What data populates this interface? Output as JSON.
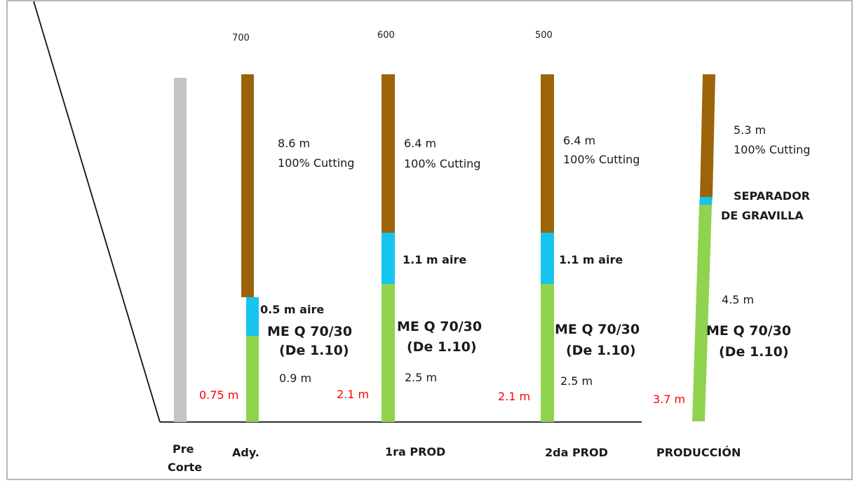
{
  "colors": {
    "frame": "#a0a0a0",
    "cutting": "#9c6409",
    "air": "#16c4f0",
    "explosive": "#8fd34e",
    "precut": "#c4c4c4",
    "line": "#111111",
    "depth_label": "#ff0000"
  },
  "columns": {
    "precorte": {
      "label_line1": "Pre",
      "label_line2": "Corte"
    },
    "ady": {
      "label": "Ady.",
      "depth_top": "700",
      "cutting_length": "8.6 m",
      "cutting_desc": "100% Cutting",
      "air_text": "0.5 m aire",
      "explosive_line1": "ME Q 70/30",
      "explosive_line2": "(De 1.10)",
      "explosive_length": "0.9 m",
      "bottom_depth": "0.75 m"
    },
    "prod1": {
      "label": "1ra PROD",
      "depth_top": "600",
      "cutting_length": "6.4 m",
      "cutting_desc": "100% Cutting",
      "air_text": "1.1 m aire",
      "explosive_line1": "ME Q 70/30",
      "explosive_line2": "(De 1.10)",
      "explosive_length": "2.5 m",
      "bottom_depth": "2.1 m"
    },
    "prod2": {
      "label": "2da PROD",
      "depth_top": "500",
      "cutting_length": "6.4 m",
      "cutting_desc": "100% Cutting",
      "air_text": "1.1 m aire",
      "explosive_line1": "ME Q 70/30",
      "explosive_line2": "(De 1.10)",
      "explosive_length": "2.5 m",
      "bottom_depth": "2.1 m"
    },
    "produccion": {
      "label": "PRODUCCIÓN",
      "cutting_length": "5.3 m",
      "cutting_desc": "100% Cutting",
      "separator_line1": "SEPARADOR",
      "separator_line2": "DE GRAVILLA",
      "explosive_length": "4.5 m",
      "explosive_line1": "ME Q 70/30",
      "explosive_line2": "(De 1.10)",
      "bottom_depth": "3.7 m"
    }
  }
}
